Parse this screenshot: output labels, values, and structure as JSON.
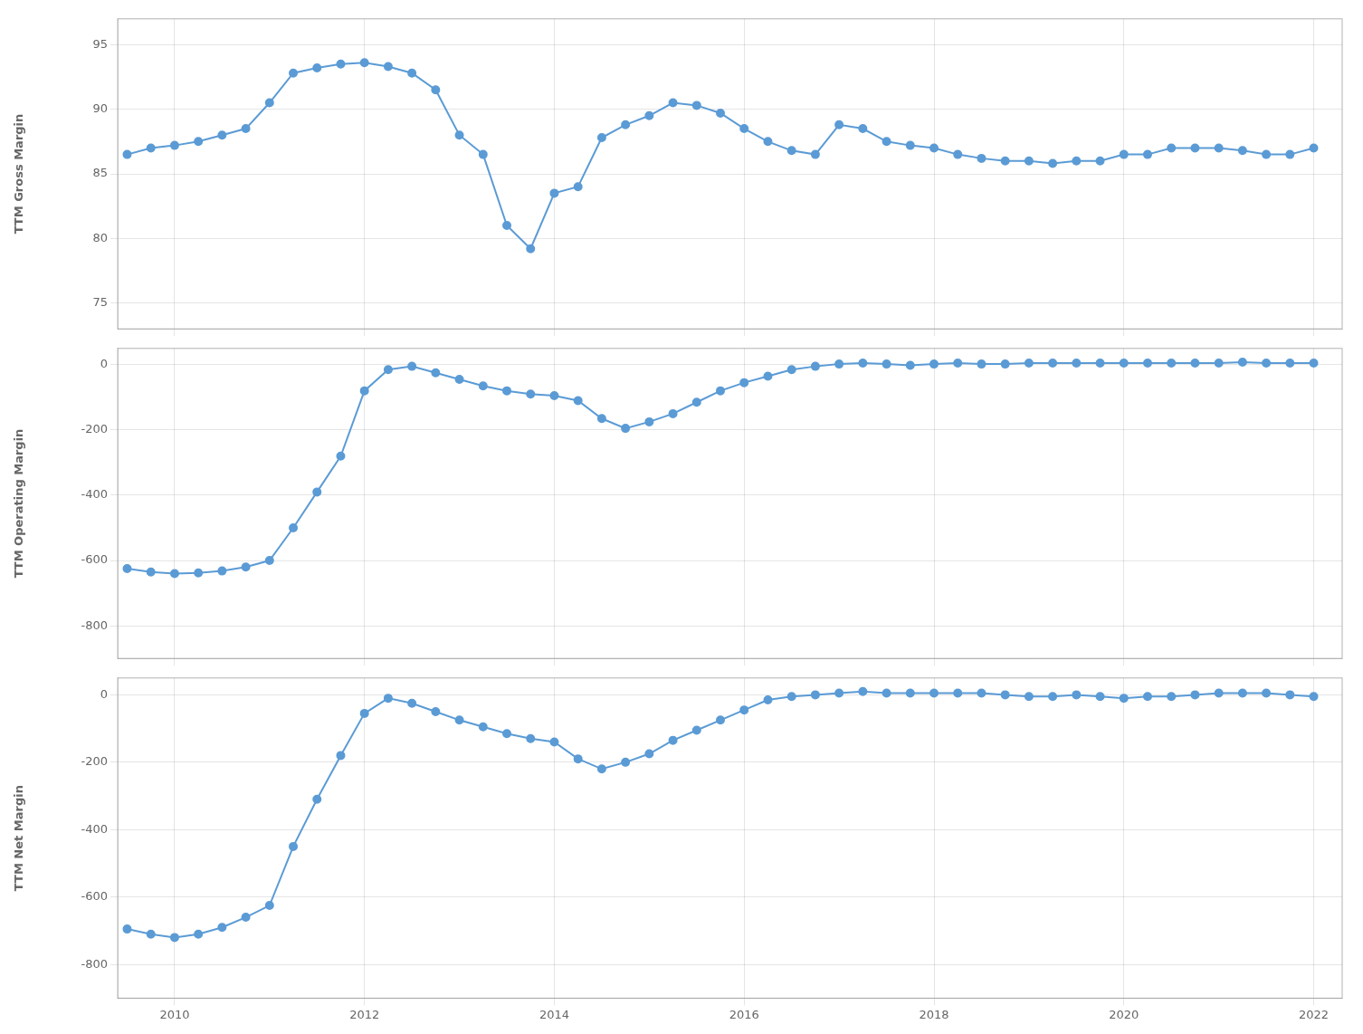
{
  "chart_data": [
    {
      "type": "line",
      "ylabel": "TTM Gross Margin",
      "marker": "circle",
      "color": "#5b9bd5",
      "grid": true,
      "tick_labels": "y",
      "x": [
        2009.5,
        2009.75,
        2010.0,
        2010.25,
        2010.5,
        2010.75,
        2011.0,
        2011.25,
        2011.5,
        2011.75,
        2012.0,
        2012.25,
        2012.5,
        2012.75,
        2013.0,
        2013.25,
        2013.5,
        2013.75,
        2014.0,
        2014.25,
        2014.5,
        2014.75,
        2015.0,
        2015.25,
        2015.5,
        2015.75,
        2016.0,
        2016.25,
        2016.5,
        2016.75,
        2017.0,
        2017.25,
        2017.5,
        2017.75,
        2018.0,
        2018.25,
        2018.5,
        2018.75,
        2019.0,
        2019.25,
        2019.5,
        2019.75,
        2020.0,
        2020.25,
        2020.5,
        2020.75,
        2021.0,
        2021.25,
        2021.5,
        2021.75,
        2022.0
      ],
      "values": [
        86.5,
        87.0,
        87.2,
        87.5,
        88.0,
        88.5,
        90.5,
        92.8,
        93.2,
        93.5,
        93.6,
        93.3,
        92.8,
        91.5,
        88.0,
        86.5,
        81.0,
        79.2,
        83.5,
        84.0,
        87.8,
        88.8,
        89.5,
        90.5,
        90.3,
        89.7,
        88.5,
        87.5,
        86.8,
        86.5,
        88.8,
        88.5,
        87.5,
        87.2,
        87.0,
        86.5,
        86.2,
        86.0,
        86.0,
        85.8,
        86.0,
        86.0,
        86.5,
        86.5,
        87.0,
        87.0,
        87.0,
        86.8,
        86.5,
        86.5,
        87.0
      ],
      "xlim": [
        2009.4,
        2022.3
      ],
      "xticks": [
        2010,
        2012,
        2014,
        2016,
        2018,
        2020,
        2022
      ],
      "ylim": [
        73,
        97
      ],
      "yticks": [
        75,
        80,
        85,
        90,
        95
      ]
    },
    {
      "type": "line",
      "ylabel": "TTM Operating Margin",
      "marker": "circle",
      "color": "#5b9bd5",
      "grid": true,
      "tick_labels": "y",
      "x": [
        2009.5,
        2009.75,
        2010.0,
        2010.25,
        2010.5,
        2010.75,
        2011.0,
        2011.25,
        2011.5,
        2011.75,
        2012.0,
        2012.25,
        2012.5,
        2012.75,
        2013.0,
        2013.25,
        2013.5,
        2013.75,
        2014.0,
        2014.25,
        2014.5,
        2014.75,
        2015.0,
        2015.25,
        2015.5,
        2015.75,
        2016.0,
        2016.25,
        2016.5,
        2016.75,
        2017.0,
        2017.25,
        2017.5,
        2017.75,
        2018.0,
        2018.25,
        2018.5,
        2018.75,
        2019.0,
        2019.25,
        2019.5,
        2019.75,
        2020.0,
        2020.25,
        2020.5,
        2020.75,
        2021.0,
        2021.25,
        2021.5,
        2021.75,
        2022.0
      ],
      "values": [
        -625.0,
        -635.0,
        -640.0,
        -638.0,
        -632.0,
        -620.0,
        -600.0,
        -500.0,
        -390.0,
        -280.0,
        -80.0,
        -15.0,
        -5.0,
        -25.0,
        -45.0,
        -65.0,
        -80.0,
        -90.0,
        -95.0,
        -110.0,
        -165.0,
        -195.0,
        -175.0,
        -150.0,
        -115.0,
        -80.0,
        -55.0,
        -35.0,
        -15.0,
        -5.0,
        2.0,
        5.0,
        2.0,
        -2.0,
        2.0,
        5.0,
        2.0,
        2.0,
        5.0,
        5.0,
        5.0,
        5.0,
        5.0,
        5.0,
        5.0,
        5.0,
        5.0,
        8.0,
        5.0,
        5.0,
        5.0
      ],
      "xlim": [
        2009.4,
        2022.3
      ],
      "xticks": [
        2010,
        2012,
        2014,
        2016,
        2018,
        2020,
        2022
      ],
      "ylim": [
        -900,
        50
      ],
      "yticks": [
        -800,
        -600,
        -400,
        -200,
        0
      ]
    },
    {
      "type": "line",
      "ylabel": "TTM Net Margin",
      "marker": "circle",
      "color": "#5b9bd5",
      "grid": true,
      "x": [
        2009.5,
        2009.75,
        2010.0,
        2010.25,
        2010.5,
        2010.75,
        2011.0,
        2011.25,
        2011.5,
        2011.75,
        2012.0,
        2012.25,
        2012.5,
        2012.75,
        2013.0,
        2013.25,
        2013.5,
        2013.75,
        2014.0,
        2014.25,
        2014.5,
        2014.75,
        2015.0,
        2015.25,
        2015.5,
        2015.75,
        2016.0,
        2016.25,
        2016.5,
        2016.75,
        2017.0,
        2017.25,
        2017.5,
        2017.75,
        2018.0,
        2018.25,
        2018.5,
        2018.75,
        2019.0,
        2019.25,
        2019.5,
        2019.75,
        2020.0,
        2020.25,
        2020.5,
        2020.75,
        2021.0,
        2021.25,
        2021.5,
        2021.75,
        2022.0
      ],
      "values": [
        -695.0,
        -710.0,
        -720.0,
        -710.0,
        -690.0,
        -660.0,
        -625.0,
        -450.0,
        -310.0,
        -180.0,
        -55.0,
        -10.0,
        -25.0,
        -50.0,
        -75.0,
        -95.0,
        -115.0,
        -130.0,
        -140.0,
        -190.0,
        -220.0,
        -200.0,
        -175.0,
        -135.0,
        -105.0,
        -75.0,
        -45.0,
        -15.0,
        -5.0,
        0.0,
        5.0,
        10.0,
        5.0,
        5.0,
        5.0,
        5.0,
        5.0,
        0.0,
        -5.0,
        -5.0,
        0.0,
        -5.0,
        -10.0,
        -5.0,
        -5.0,
        0.0,
        5.0,
        5.0,
        5.0,
        0.0,
        -5.0
      ],
      "xlim": [
        2009.4,
        2022.3
      ],
      "xticks": [
        2010,
        2012,
        2014,
        2016,
        2018,
        2020,
        2022
      ],
      "ylim": [
        -900,
        50
      ],
      "yticks": [
        -800,
        -600,
        -400,
        -200,
        0
      ]
    }
  ]
}
